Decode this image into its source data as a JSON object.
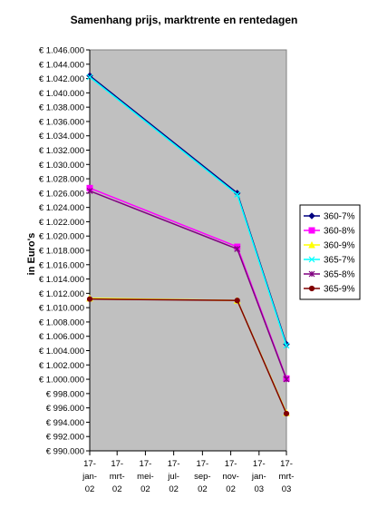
{
  "chart_data": {
    "type": "line",
    "title": "Samenhang prijs, marktrente en rentedagen",
    "ylabel": "in Euro's",
    "xlabel": "",
    "ylim": [
      990000,
      1046000
    ],
    "ytick_step": 2000,
    "y_tick_prefix": "€ ",
    "categories": [
      [
        "17-",
        "jan-",
        "02"
      ],
      [
        "17-",
        "mrt-",
        "02"
      ],
      [
        "17-",
        "mei-",
        "02"
      ],
      [
        "17-",
        "jul-",
        "02"
      ],
      [
        "17-",
        "sep-",
        "02"
      ],
      [
        "17-",
        "nov-",
        "02"
      ],
      [
        "17-",
        "jan-",
        "03"
      ],
      [
        "17-",
        "mrt-",
        "03"
      ]
    ],
    "x_dates": [
      "2002-01-17",
      "2002-03-17",
      "2002-05-17",
      "2002-07-17",
      "2002-09-17",
      "2002-11-17",
      "2003-01-17",
      "2003-03-17"
    ],
    "series": [
      {
        "name": "360-7%",
        "color": "#000080",
        "marker": "diamond",
        "points": [
          [
            "2002-01-17",
            1042400
          ],
          [
            "2002-12-01",
            1026000
          ],
          [
            "2003-03-17",
            1004900
          ]
        ]
      },
      {
        "name": "360-8%",
        "color": "#ff00ff",
        "marker": "square",
        "points": [
          [
            "2002-01-17",
            1026700
          ],
          [
            "2002-12-01",
            1018500
          ],
          [
            "2003-03-17",
            1000100
          ]
        ]
      },
      {
        "name": "360-9%",
        "color": "#ffff00",
        "marker": "triangle",
        "points": [
          [
            "2002-01-17",
            1011300
          ],
          [
            "2002-12-01",
            1011000
          ],
          [
            "2003-03-17",
            995300
          ]
        ]
      },
      {
        "name": "365-7%",
        "color": "#00ffff",
        "marker": "x",
        "points": [
          [
            "2002-01-17",
            1042200
          ],
          [
            "2002-12-01",
            1025800
          ],
          [
            "2003-03-17",
            1004700
          ]
        ]
      },
      {
        "name": "365-8%",
        "color": "#800080",
        "marker": "asterisk",
        "points": [
          [
            "2002-01-17",
            1026300
          ],
          [
            "2002-12-01",
            1018200
          ],
          [
            "2003-03-17",
            1000000
          ]
        ]
      },
      {
        "name": "365-9%",
        "color": "#800000",
        "marker": "circle",
        "points": [
          [
            "2002-01-17",
            1011200
          ],
          [
            "2002-12-01",
            1011000
          ],
          [
            "2003-03-17",
            995200
          ]
        ]
      }
    ],
    "plot_background": "#c0c0c0",
    "gridlines": false,
    "legend_position": "right"
  }
}
